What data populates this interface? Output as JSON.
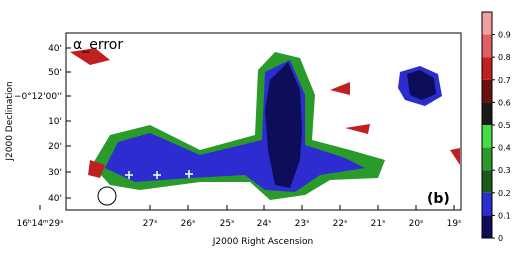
{
  "image": {
    "label": "α_error",
    "panel": "(b)",
    "x_axis_title": "J2000 Right Ascension",
    "y_axis_title": "J2000 Declination",
    "x_tick_labels": [
      "16ʰ14ᵐ29ˢ",
      "27ˢ",
      "26ˢ",
      "25ˢ",
      "24ˢ",
      "23ˢ",
      "22ˢ",
      "21ˢ",
      "20ˢ",
      "19ˢ"
    ],
    "y_tick_labels": [
      "40'",
      "50'",
      "−0°12'00''",
      "10'",
      "20'",
      "30'",
      "40'"
    ]
  },
  "colorbar": {
    "lim": [
      0,
      1
    ],
    "ticks": [
      0,
      0.1,
      0.2,
      0.3,
      0.4,
      0.5,
      0.6,
      0.7,
      0.8,
      0.9
    ],
    "colors": [
      "#0d0d5a",
      "#2c2cd0",
      "#1a5a1a",
      "#2a9a2a",
      "#44dd44",
      "#1a1a1a",
      "#6a1010",
      "#c02020",
      "#e06060",
      "#f0a0a0"
    ]
  }
}
